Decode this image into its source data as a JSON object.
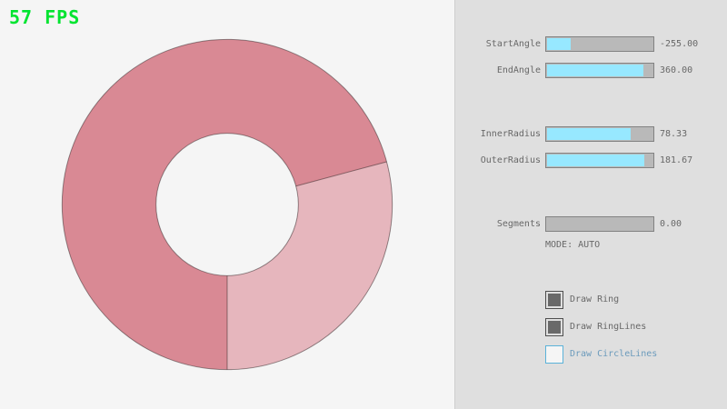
{
  "fps": {
    "label": "57 FPS",
    "color": "#00E430"
  },
  "ring": {
    "color_double": "#D98994",
    "color_single": "#E6B6BD",
    "line_color": "rgba(0,0,0,0.4)"
  },
  "panel": {
    "sliders": [
      {
        "id": "start-angle",
        "label": "StartAngle",
        "value": "-255.00",
        "fill_pct": 21.7
      },
      {
        "id": "end-angle",
        "label": "EndAngle",
        "value": "360.00",
        "fill_pct": 90
      },
      {
        "id": "inner-radius",
        "label": "InnerRadius",
        "value": "78.33",
        "fill_pct": 78.3
      },
      {
        "id": "outer-radius",
        "label": "OuterRadius",
        "value": "181.67",
        "fill_pct": 90.8
      },
      {
        "id": "segments",
        "label": "Segments",
        "value": "0.00",
        "fill_pct": 0
      }
    ],
    "mode_text": "MODE: AUTO",
    "checkboxes": [
      {
        "id": "draw-ring",
        "label": "Draw Ring",
        "checked": true
      },
      {
        "id": "draw-ringlines",
        "label": "Draw RingLines",
        "checked": true
      },
      {
        "id": "draw-circlelines",
        "label": "Draw CircleLines",
        "checked": false
      }
    ],
    "colors": {
      "slider_fill": "#97E8FF",
      "slider_track": "#B9B9B9",
      "text_gray": "#686868",
      "focus_blue_border": "#5BB2D9",
      "focus_blue_text": "#6C9BBC",
      "checked_box": "#696969"
    }
  }
}
